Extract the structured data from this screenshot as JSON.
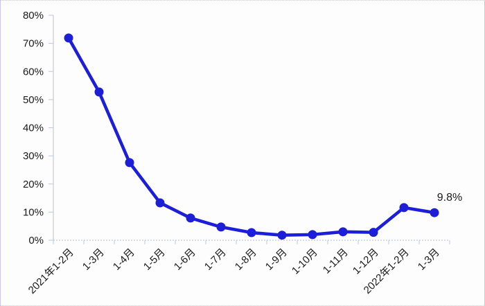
{
  "chart_data": {
    "type": "line",
    "title": "",
    "xlabel": "",
    "ylabel": "",
    "categories": [
      "2021年1-2月",
      "1-3月",
      "1-4月",
      "1-5月",
      "1-6月",
      "1-7月",
      "1-8月",
      "1-9月",
      "1-10月",
      "1-11月",
      "1-12月",
      "2022年1-2月",
      "1-3月"
    ],
    "values": [
      71.9,
      52.7,
      27.6,
      13.3,
      7.9,
      4.7,
      2.7,
      1.8,
      2.0,
      3.0,
      2.8,
      11.6,
      9.8
    ],
    "ylim": [
      0,
      80
    ],
    "ytick_step": 10,
    "ytick_labels": [
      "0%",
      "10%",
      "20%",
      "30%",
      "40%",
      "50%",
      "60%",
      "70%",
      "80%"
    ],
    "grid": false,
    "legend_position": "none",
    "annotation": {
      "text": "9.8%",
      "point_index": 12
    },
    "colors": {
      "line": "#1d1fd8",
      "marker": "#1d1fd8",
      "axis": "#d4d4d4",
      "y_tick": "#b9c9e3",
      "x_tick": "#c2cbd8",
      "zero_line": "#b7c8e6",
      "label_text": "#1a1a1a"
    }
  }
}
